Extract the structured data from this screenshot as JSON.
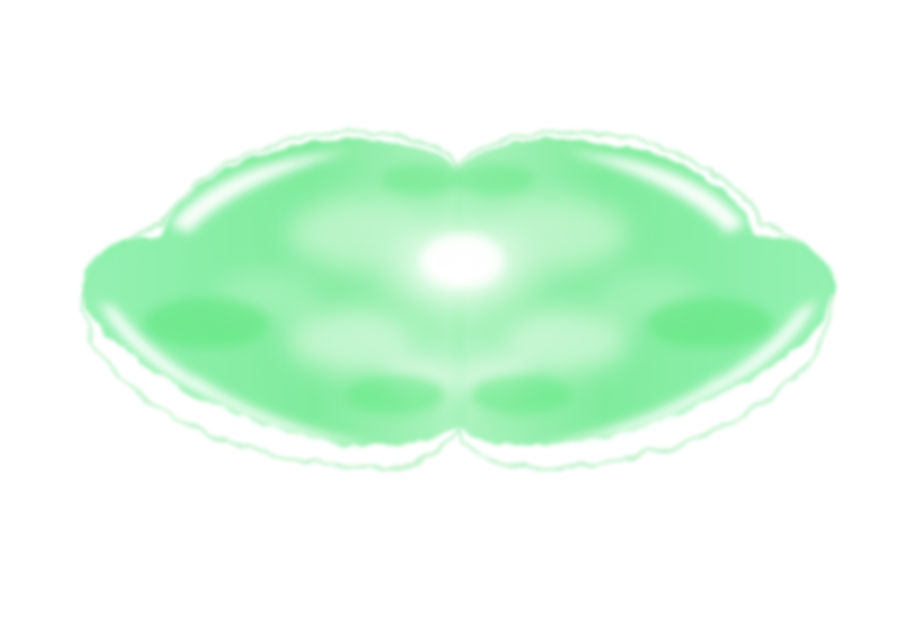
{
  "image": {
    "background_color": "#ffffff",
    "subject": "green-symmetric-ink-blot",
    "palette": {
      "light_mint": "#bff5c9",
      "mint": "#86eea6",
      "bright_green": "#64e986",
      "glow": "#ffffff",
      "edge": "#9ae8ae"
    }
  }
}
